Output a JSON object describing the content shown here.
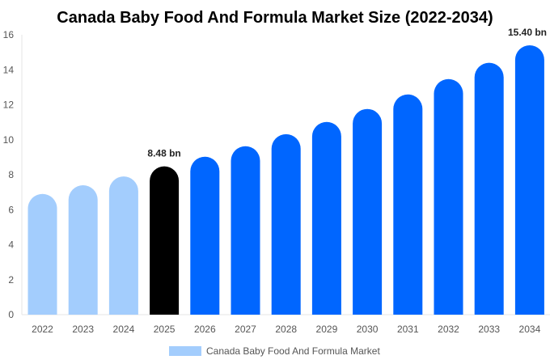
{
  "chart_data": {
    "type": "bar",
    "title": "Canada Baby Food And Formula Market Size (2022-2034)",
    "categories": [
      "2022",
      "2023",
      "2024",
      "2025",
      "2026",
      "2027",
      "2028",
      "2029",
      "2030",
      "2031",
      "2032",
      "2033",
      "2034"
    ],
    "series": [
      {
        "name": "Canada Baby Food And Formula Market",
        "values": [
          6.9,
          7.4,
          7.9,
          8.48,
          9.03,
          9.63,
          10.32,
          11.02,
          11.76,
          12.59,
          13.47,
          14.4,
          15.4
        ]
      }
    ],
    "data_labels": {
      "3": "8.48 bn",
      "12": "15.40 bn"
    },
    "ylim": [
      0,
      16
    ],
    "yticks": [
      0,
      2,
      4,
      6,
      8,
      10,
      12,
      14,
      16
    ],
    "xlabel": "",
    "ylabel": "",
    "grid": false,
    "legend_placement": "bottom",
    "colors": {
      "historical": "#a3cdfd",
      "current": "#000000",
      "forecast": "#0066ff"
    }
  }
}
